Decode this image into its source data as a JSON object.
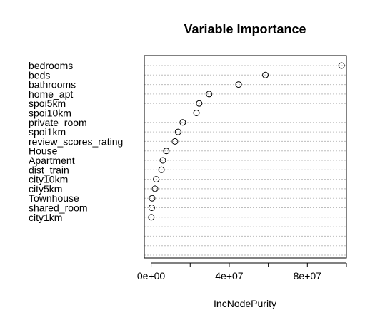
{
  "chart_data": {
    "type": "scatter",
    "title": "Variable Importance",
    "xlabel": "IncNodePurity",
    "ylabel": "",
    "xlim": [
      -3500000,
      100000000
    ],
    "x_ticks": [
      {
        "value": 0,
        "label": "0e+00"
      },
      {
        "value": 40000000,
        "label": "4e+07"
      },
      {
        "value": 80000000,
        "label": "8e+07"
      }
    ],
    "x_minor_ticks": [
      20000000,
      60000000,
      100000000
    ],
    "grid": "horizontal-dotted",
    "series": [
      {
        "points": [
          {
            "label": "bedrooms",
            "value": 97500000
          },
          {
            "label": "beds",
            "value": 58500000
          },
          {
            "label": "bathrooms",
            "value": 44800000
          },
          {
            "label": "home_apt",
            "value": 29700000
          },
          {
            "label": "spoi5km",
            "value": 24600000
          },
          {
            "label": "spoi10km",
            "value": 23200000
          },
          {
            "label": "private_room",
            "value": 16200000
          },
          {
            "label": "spoi1km",
            "value": 13800000
          },
          {
            "label": "review_scores_rating",
            "value": 12200000
          },
          {
            "label": "House",
            "value": 7800000
          },
          {
            "label": "Apartment",
            "value": 6000000
          },
          {
            "label": "dist_train",
            "value": 5300000
          },
          {
            "label": "city10km",
            "value": 2600000
          },
          {
            "label": "city5km",
            "value": 2000000
          },
          {
            "label": "Townhouse",
            "value": 500000
          },
          {
            "label": "shared_room",
            "value": 300000
          },
          {
            "label": "city1km",
            "value": 100000
          }
        ]
      }
    ]
  }
}
